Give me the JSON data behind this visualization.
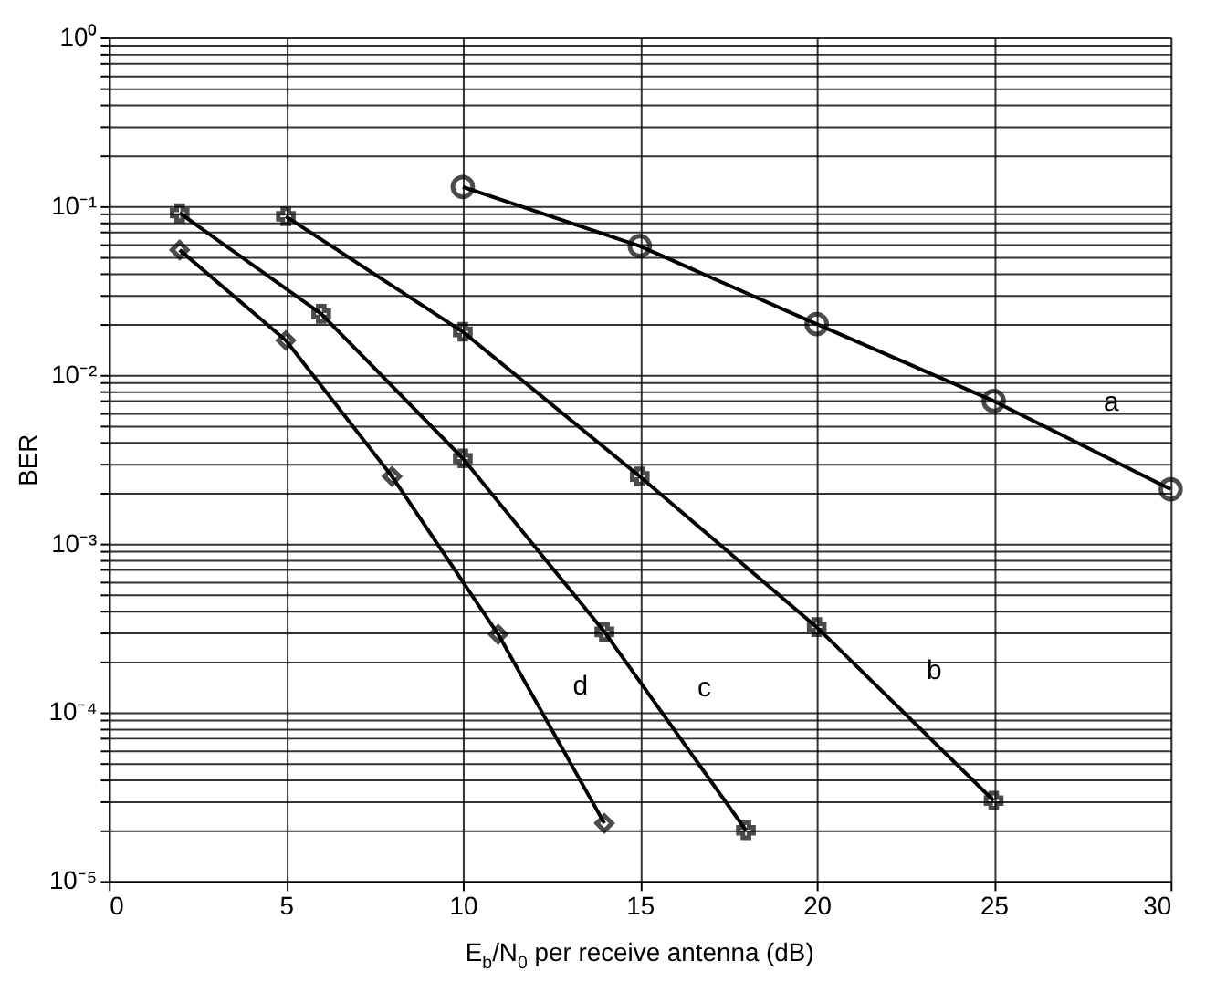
{
  "chart_data": {
    "type": "line",
    "xlabel": "E$_{b}$/N$_{0}$ per receive antenna (dB)",
    "ylabel": "BER",
    "log": "y",
    "grid": true,
    "xlim": [
      0,
      30
    ],
    "xticks": [
      0,
      5,
      10,
      15,
      20,
      25,
      30
    ],
    "ylim": [
      1e-05,
      1
    ],
    "yticks": [
      {
        "value": 1e-05,
        "label": "10⁻⁵"
      },
      {
        "value": 2e-05,
        "label": null
      },
      {
        "value": 3e-05,
        "label": null
      },
      {
        "value": 4e-05,
        "label": null
      },
      {
        "value": 5e-05,
        "label": null
      },
      {
        "value": 6e-05,
        "label": null
      },
      {
        "value": 7e-05,
        "label": null
      },
      {
        "value": 8e-05,
        "label": null
      },
      {
        "value": 9e-05,
        "label": null
      },
      {
        "value": 0.0001,
        "label": "10⁻⁴"
      },
      {
        "value": 0.0002,
        "label": null
      },
      {
        "value": 0.0003,
        "label": null
      },
      {
        "value": 0.0004,
        "label": null
      },
      {
        "value": 0.0005,
        "label": null
      },
      {
        "value": 0.0006,
        "label": null
      },
      {
        "value": 0.0007,
        "label": null
      },
      {
        "value": 0.0008,
        "label": null
      },
      {
        "value": 0.0009,
        "label": null
      },
      {
        "value": 0.001,
        "label": "10⁻³"
      },
      {
        "value": 0.002,
        "label": null
      },
      {
        "value": 0.003,
        "label": null
      },
      {
        "value": 0.004,
        "label": null
      },
      {
        "value": 0.005,
        "label": null
      },
      {
        "value": 0.006,
        "label": null
      },
      {
        "value": 0.007,
        "label": null
      },
      {
        "value": 0.008,
        "label": null
      },
      {
        "value": 0.009,
        "label": null
      },
      {
        "value": 0.01,
        "label": "10⁻²"
      },
      {
        "value": 0.02,
        "label": null
      },
      {
        "value": 0.03,
        "label": null
      },
      {
        "value": 0.04,
        "label": null
      },
      {
        "value": 0.05,
        "label": null
      },
      {
        "value": 0.06,
        "label": null
      },
      {
        "value": 0.07,
        "label": null
      },
      {
        "value": 0.08,
        "label": null
      },
      {
        "value": 0.09,
        "label": null
      },
      {
        "value": 0.1,
        "label": "10⁻¹"
      },
      {
        "value": 0.2,
        "label": null
      },
      {
        "value": 0.3,
        "label": null
      },
      {
        "value": 0.4,
        "label": null
      },
      {
        "value": 0.5,
        "label": null
      },
      {
        "value": 0.6,
        "label": null
      },
      {
        "value": 0.7,
        "label": null
      },
      {
        "value": 0.8,
        "label": null
      },
      {
        "value": 0.9,
        "label": null
      },
      {
        "value": 1,
        "label": "10⁰"
      }
    ],
    "series": [
      {
        "name": "a",
        "color": "#000000",
        "marker": "circle",
        "x": [
          10,
          15,
          20,
          25,
          30
        ],
        "values": [
          0.13,
          0.058,
          0.02,
          0.007,
          0.0021
        ]
      },
      {
        "name": "b",
        "color": "#000000",
        "marker": "cross",
        "x": [
          5,
          10,
          15,
          20,
          25
        ],
        "values": [
          0.087,
          0.018,
          0.0025,
          0.00032,
          3e-05
        ]
      },
      {
        "name": "c",
        "color": "#000000",
        "marker": "cross",
        "x": [
          2,
          6,
          10,
          14,
          18
        ],
        "values": [
          0.091,
          0.023,
          0.0032,
          0.0003,
          2e-05
        ]
      },
      {
        "name": "d",
        "color": "#000000",
        "marker": "diamond",
        "x": [
          2,
          5,
          8,
          11,
          14
        ],
        "values": [
          0.055,
          0.016,
          0.0025,
          0.00029,
          2.2e-05
        ]
      }
    ]
  }
}
